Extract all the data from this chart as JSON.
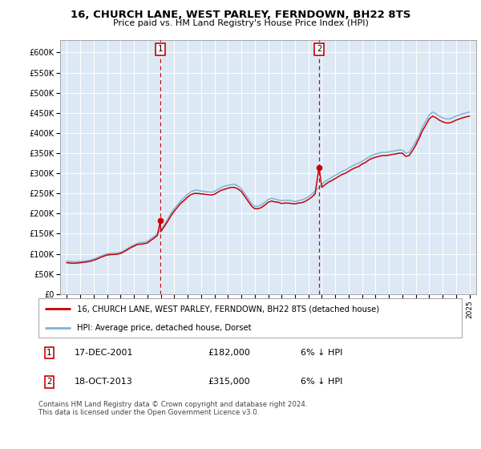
{
  "title": "16, CHURCH LANE, WEST PARLEY, FERNDOWN, BH22 8TS",
  "subtitle": "Price paid vs. HM Land Registry's House Price Index (HPI)",
  "ylabel_ticks": [
    "£0",
    "£50K",
    "£100K",
    "£150K",
    "£200K",
    "£250K",
    "£300K",
    "£350K",
    "£400K",
    "£450K",
    "£500K",
    "£550K",
    "£600K"
  ],
  "ytick_values": [
    0,
    50000,
    100000,
    150000,
    200000,
    250000,
    300000,
    350000,
    400000,
    450000,
    500000,
    550000,
    600000
  ],
  "xlim": [
    1994.5,
    2025.5
  ],
  "ylim": [
    0,
    630000
  ],
  "bg_color": "#dce9f5",
  "line_color_red": "#cc0000",
  "line_color_blue": "#7fb3d9",
  "sale1_year": 2001.96,
  "sale1_price": 182000,
  "sale2_year": 2013.79,
  "sale2_price": 315000,
  "legend_label1": "16, CHURCH LANE, WEST PARLEY, FERNDOWN, BH22 8TS (detached house)",
  "legend_label2": "HPI: Average price, detached house, Dorset",
  "note1_date": "17-DEC-2001",
  "note1_price": "£182,000",
  "note1_hpi": "6% ↓ HPI",
  "note2_date": "18-OCT-2013",
  "note2_price": "£315,000",
  "note2_hpi": "6% ↓ HPI",
  "footer": "Contains HM Land Registry data © Crown copyright and database right 2024.\nThis data is licensed under the Open Government Licence v3.0.",
  "hpi_years": [
    1995.0,
    1995.25,
    1995.5,
    1995.75,
    1996.0,
    1996.25,
    1996.5,
    1996.75,
    1997.0,
    1997.25,
    1997.5,
    1997.75,
    1998.0,
    1998.25,
    1998.5,
    1998.75,
    1999.0,
    1999.25,
    1999.5,
    1999.75,
    2000.0,
    2000.25,
    2000.5,
    2000.75,
    2001.0,
    2001.25,
    2001.5,
    2001.75,
    2002.0,
    2002.25,
    2002.5,
    2002.75,
    2003.0,
    2003.25,
    2003.5,
    2003.75,
    2004.0,
    2004.25,
    2004.5,
    2004.75,
    2005.0,
    2005.25,
    2005.5,
    2005.75,
    2006.0,
    2006.25,
    2006.5,
    2006.75,
    2007.0,
    2007.25,
    2007.5,
    2007.75,
    2008.0,
    2008.25,
    2008.5,
    2008.75,
    2009.0,
    2009.25,
    2009.5,
    2009.75,
    2010.0,
    2010.25,
    2010.5,
    2010.75,
    2011.0,
    2011.25,
    2011.5,
    2011.75,
    2012.0,
    2012.25,
    2012.5,
    2012.75,
    2013.0,
    2013.25,
    2013.5,
    2013.75,
    2014.0,
    2014.25,
    2014.5,
    2014.75,
    2015.0,
    2015.25,
    2015.5,
    2015.75,
    2016.0,
    2016.25,
    2016.5,
    2016.75,
    2017.0,
    2017.25,
    2017.5,
    2017.75,
    2018.0,
    2018.25,
    2018.5,
    2018.75,
    2019.0,
    2019.25,
    2019.5,
    2019.75,
    2020.0,
    2020.25,
    2020.5,
    2020.75,
    2021.0,
    2021.25,
    2021.5,
    2021.75,
    2022.0,
    2022.25,
    2022.5,
    2022.75,
    2023.0,
    2023.25,
    2023.5,
    2023.75,
    2024.0,
    2024.25,
    2024.5,
    2024.75,
    2025.0
  ],
  "hpi_vals": [
    82000,
    81000,
    80000,
    80500,
    81000,
    82000,
    83000,
    84500,
    87000,
    90000,
    94000,
    97000,
    100000,
    101000,
    101500,
    102000,
    104000,
    108000,
    113000,
    118000,
    122000,
    126000,
    128000,
    129000,
    131000,
    137000,
    143000,
    150000,
    160000,
    172000,
    185000,
    200000,
    212000,
    222000,
    232000,
    240000,
    248000,
    254000,
    258000,
    258000,
    256000,
    255000,
    254000,
    253000,
    255000,
    260000,
    265000,
    268000,
    270000,
    272000,
    273000,
    268000,
    262000,
    250000,
    238000,
    225000,
    218000,
    218000,
    222000,
    228000,
    235000,
    238000,
    236000,
    234000,
    232000,
    233000,
    233000,
    232000,
    230000,
    232000,
    234000,
    237000,
    242000,
    248000,
    256000,
    264000,
    272000,
    280000,
    285000,
    290000,
    295000,
    300000,
    305000,
    308000,
    313000,
    318000,
    322000,
    325000,
    330000,
    335000,
    340000,
    345000,
    348000,
    350000,
    352000,
    352000,
    353000,
    355000,
    356000,
    358000,
    358000,
    350000,
    352000,
    365000,
    378000,
    395000,
    415000,
    430000,
    445000,
    452000,
    448000,
    442000,
    438000,
    435000,
    435000,
    438000,
    442000,
    445000,
    448000,
    450000,
    452000
  ],
  "price_years": [
    1995.0,
    1995.25,
    1995.5,
    1995.75,
    1996.0,
    1996.25,
    1996.5,
    1996.75,
    1997.0,
    1997.25,
    1997.5,
    1997.75,
    1998.0,
    1998.25,
    1998.5,
    1998.75,
    1999.0,
    1999.25,
    1999.5,
    1999.75,
    2000.0,
    2000.25,
    2000.5,
    2000.75,
    2001.0,
    2001.25,
    2001.5,
    2001.75,
    2001.96,
    2002.0,
    2002.25,
    2002.5,
    2002.75,
    2003.0,
    2003.25,
    2003.5,
    2003.75,
    2004.0,
    2004.25,
    2004.5,
    2004.75,
    2005.0,
    2005.25,
    2005.5,
    2005.75,
    2006.0,
    2006.25,
    2006.5,
    2006.75,
    2007.0,
    2007.25,
    2007.5,
    2007.75,
    2008.0,
    2008.25,
    2008.5,
    2008.75,
    2009.0,
    2009.25,
    2009.5,
    2009.75,
    2010.0,
    2010.25,
    2010.5,
    2010.75,
    2011.0,
    2011.25,
    2011.5,
    2011.75,
    2012.0,
    2012.25,
    2012.5,
    2012.75,
    2013.0,
    2013.25,
    2013.5,
    2013.79,
    2014.0,
    2014.25,
    2014.5,
    2014.75,
    2015.0,
    2015.25,
    2015.5,
    2015.75,
    2016.0,
    2016.25,
    2016.5,
    2016.75,
    2017.0,
    2017.25,
    2017.5,
    2017.75,
    2018.0,
    2018.25,
    2018.5,
    2018.75,
    2019.0,
    2019.25,
    2019.5,
    2019.75,
    2020.0,
    2020.25,
    2020.5,
    2020.75,
    2021.0,
    2021.25,
    2021.5,
    2021.75,
    2022.0,
    2022.25,
    2022.5,
    2022.75,
    2023.0,
    2023.25,
    2023.5,
    2023.75,
    2024.0,
    2024.25,
    2024.5,
    2024.75,
    2025.0
  ],
  "price_vals": [
    78000,
    77000,
    76500,
    77000,
    78000,
    79000,
    80000,
    81500,
    84000,
    87000,
    91000,
    94000,
    97000,
    98000,
    98500,
    99000,
    101000,
    105000,
    110000,
    115000,
    119000,
    123000,
    124000,
    125000,
    127000,
    133000,
    139000,
    146000,
    182000,
    155000,
    167000,
    180000,
    194000,
    206000,
    216000,
    226000,
    233000,
    241000,
    247000,
    250000,
    250000,
    249000,
    248000,
    247000,
    246000,
    248000,
    253000,
    258000,
    260000,
    263000,
    265000,
    265000,
    261000,
    255000,
    243000,
    231000,
    219000,
    212000,
    212000,
    215000,
    221000,
    228000,
    231000,
    229000,
    228000,
    225000,
    226000,
    226000,
    225000,
    224000,
    226000,
    227000,
    230000,
    235000,
    241000,
    249000,
    315000,
    265000,
    272000,
    278000,
    282000,
    287000,
    292000,
    297000,
    300000,
    305000,
    310000,
    314000,
    317000,
    323000,
    327000,
    333000,
    337000,
    340000,
    342000,
    344000,
    344000,
    345000,
    347000,
    348000,
    350000,
    350000,
    342000,
    344000,
    356000,
    370000,
    387000,
    406000,
    420000,
    435000,
    442000,
    438000,
    432000,
    428000,
    425000,
    425000,
    428000,
    432000,
    435000,
    438000,
    440000,
    442000
  ]
}
